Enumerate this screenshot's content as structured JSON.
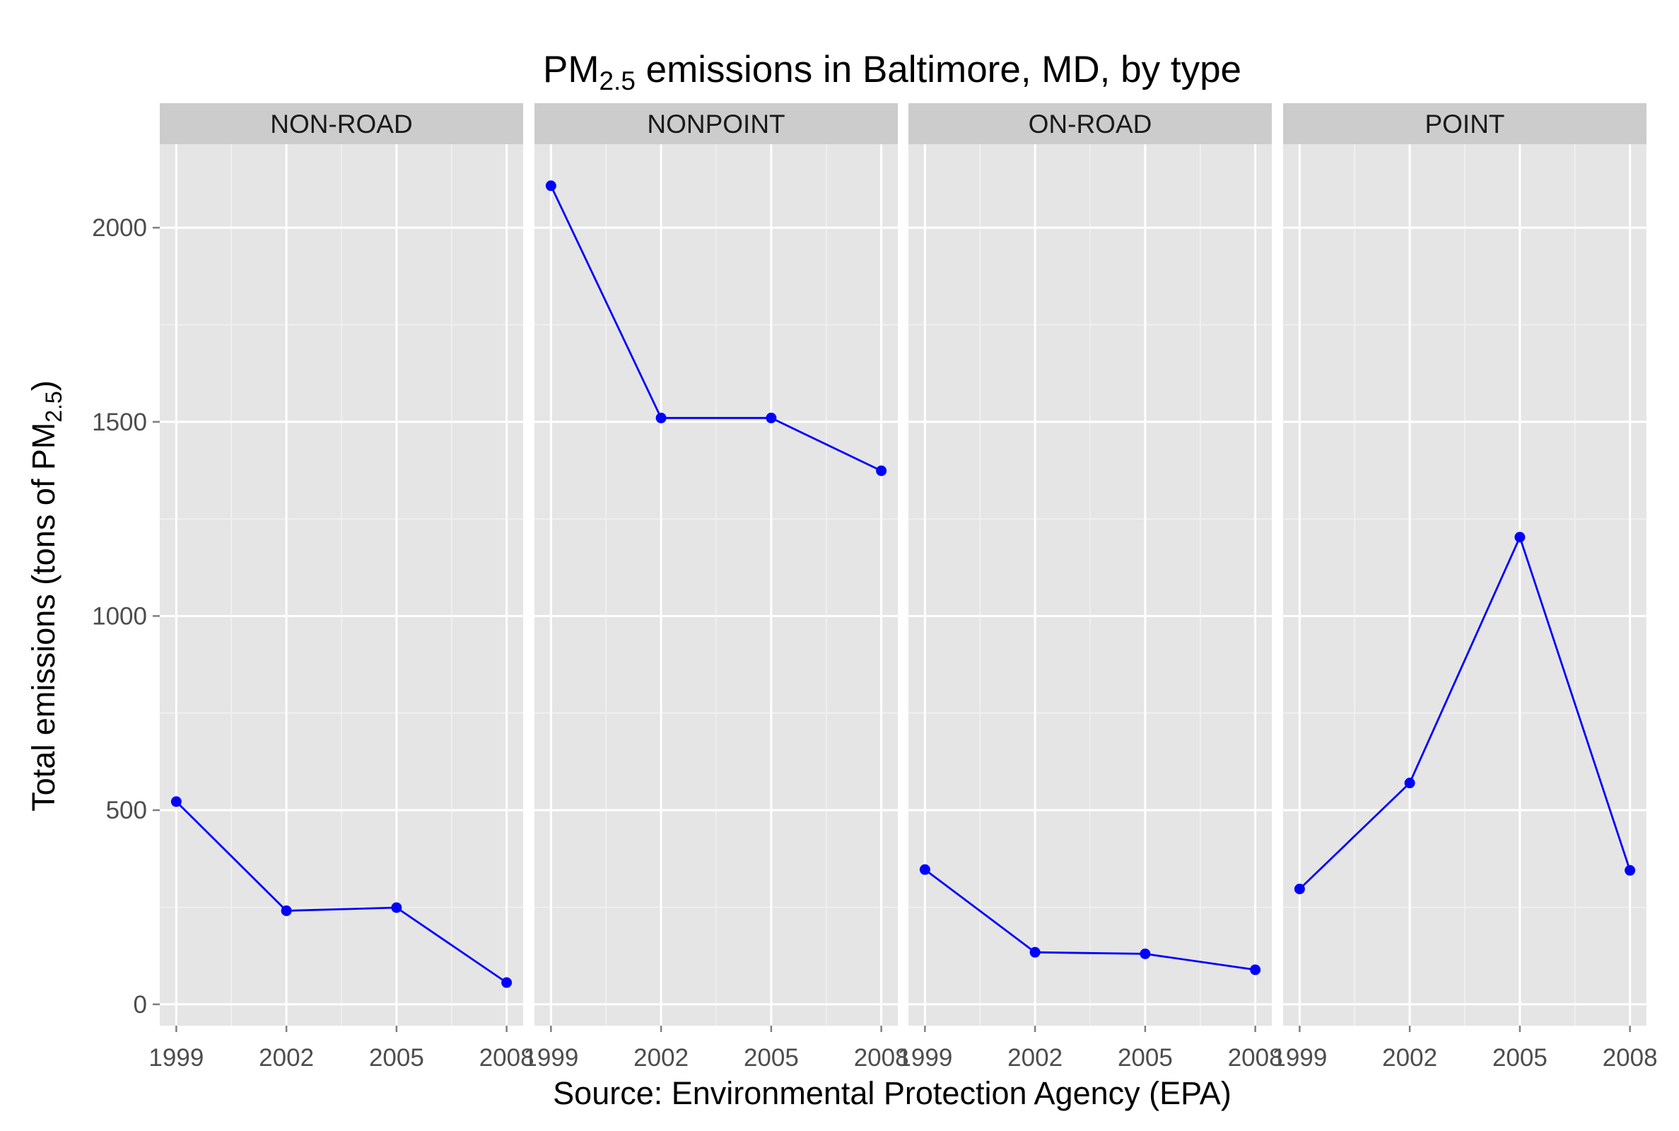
{
  "chart_data": {
    "type": "line",
    "title": {
      "pre": "PM",
      "sub": "2.5",
      "post": " emissions in Baltimore, MD, by type"
    },
    "xlabel": "Source: Environmental Protection Agency (EPA)",
    "ylabel": {
      "pre": "Total emissions (tons of PM",
      "sub": "2.5",
      "post": ")"
    },
    "x": [
      1999,
      2002,
      2005,
      2008
    ],
    "x_ticks": [
      "1999",
      "2002",
      "2005",
      "2008"
    ],
    "y_ticks": [
      0,
      500,
      1000,
      1500,
      2000
    ],
    "ylim": [
      -55,
      2215
    ],
    "xlim": [
      1998.55,
      2008.45
    ],
    "grid": true,
    "series_color": "#0000ff",
    "panel_background": "#e5e5e5",
    "strip_background": "#cccccc",
    "facets": [
      {
        "label": "NON-ROAD",
        "values": [
          522,
          241,
          249,
          56
        ]
      },
      {
        "label": "NONPOINT",
        "values": [
          2108,
          1510,
          1510,
          1374
        ]
      },
      {
        "label": "ON-ROAD",
        "values": [
          347,
          134,
          130,
          89
        ]
      },
      {
        "label": "POINT",
        "values": [
          297,
          570,
          1203,
          345
        ]
      }
    ]
  }
}
